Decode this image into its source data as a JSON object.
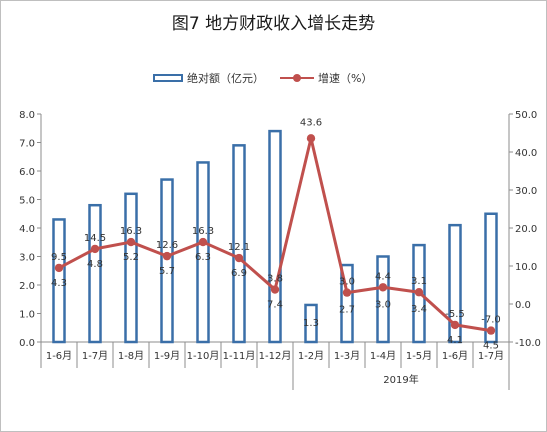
{
  "chart_data": {
    "type": "bar+line",
    "title": "图7 地方财政收入增长走势",
    "categories": [
      "1-6月",
      "1-7月",
      "1-8月",
      "1-9月",
      "1-10月",
      "1-11月",
      "1-12月",
      "1-2月",
      "1-3月",
      "1-4月",
      "1-5月",
      "1-6月",
      "1-7月"
    ],
    "group_label": "2019年",
    "series": [
      {
        "name": "绝对额（亿元）",
        "type": "bar",
        "axis": "left",
        "values": [
          4.3,
          4.8,
          5.2,
          5.7,
          6.3,
          6.9,
          7.4,
          1.3,
          2.7,
          3.0,
          3.4,
          4.1,
          4.5
        ],
        "labels": [
          "4.3",
          "4.8",
          "5.2",
          "5.7",
          "6.3",
          "6.9",
          "7.4",
          "1.3",
          "2.7",
          "3.0",
          "3.4",
          "4.1",
          "4.5"
        ]
      },
      {
        "name": "增速（%）",
        "type": "line",
        "axis": "right",
        "values": [
          9.5,
          14.5,
          16.3,
          12.6,
          16.3,
          12.1,
          3.8,
          43.6,
          3.0,
          4.4,
          3.1,
          -5.5,
          -7.0
        ],
        "labels": [
          "9.5",
          "14.5",
          "16.3",
          "12.6",
          "16.3",
          "12.1",
          "3.8",
          "43.6",
          "3.0",
          "4.4",
          "3.1",
          "-5.5",
          "-7.0"
        ]
      }
    ],
    "y_left": {
      "min": 0,
      "max": 8,
      "step": 1,
      "tick_labels": [
        "0.0",
        "1.0",
        "2.0",
        "3.0",
        "4.0",
        "5.0",
        "6.0",
        "7.0",
        "8.0"
      ]
    },
    "y_right": {
      "min": -10,
      "max": 50,
      "step": 10,
      "tick_labels": [
        "-10.0",
        "0.0",
        "10.0",
        "20.0",
        "30.0",
        "40.0",
        "50.0"
      ]
    },
    "grid": false,
    "legend_position": "top",
    "colors": {
      "bar_border": "#3a6fa8",
      "bar_fill": "#ffffff",
      "line": "#c0504d",
      "axis": "#8c8c8c",
      "text": "#333333"
    }
  }
}
